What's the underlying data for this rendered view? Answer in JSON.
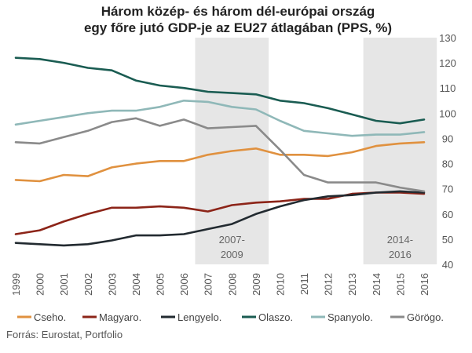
{
  "chart_data": {
    "type": "line",
    "title_lines": [
      "Három közép- és három dél-európai ország",
      "egy főre jutó GDP-je az EU27 átlagában (PPS, %)"
    ],
    "x": [
      "1999",
      "2000",
      "2001",
      "2002",
      "2003",
      "2004",
      "2005",
      "2006",
      "2007",
      "2008",
      "2009",
      "2010",
      "2011",
      "2012",
      "2013",
      "2014",
      "2015",
      "2016"
    ],
    "ylim": [
      40,
      130
    ],
    "yticks": [
      40,
      50,
      60,
      70,
      80,
      90,
      100,
      110,
      120,
      130
    ],
    "y_axis_position": "right",
    "grid": false,
    "shaded_periods": [
      {
        "from": "2007",
        "to": "2009",
        "label_lines": [
          "2007-",
          "2009"
        ]
      },
      {
        "from": "2014",
        "to": "2016",
        "label_lines": [
          "2014-",
          "2016"
        ]
      }
    ],
    "series": [
      {
        "name": "Cseho.",
        "color": "#e0913f",
        "values": [
          73.5,
          73,
          75.5,
          75,
          78.5,
          80,
          81,
          81,
          83.5,
          85,
          86,
          83.5,
          83.5,
          83,
          84.5,
          87,
          88,
          88.5
        ]
      },
      {
        "name": "Magyaro.",
        "color": "#8c2418",
        "values": [
          52,
          53.5,
          57,
          60,
          62.5,
          62.5,
          63,
          62.5,
          61,
          63.5,
          64.5,
          65,
          66,
          66,
          68,
          68.5,
          68.5,
          68
        ]
      },
      {
        "name": "Lengyelo.",
        "color": "#222a30",
        "values": [
          48.5,
          48,
          47.5,
          48,
          49.5,
          51.5,
          51.5,
          52,
          54,
          56,
          60,
          63,
          65.5,
          67,
          67.5,
          68.5,
          69,
          68.5
        ]
      },
      {
        "name": "Olaszo.",
        "color": "#1a5c52",
        "values": [
          122,
          121.5,
          120,
          118,
          117,
          113,
          111,
          110,
          108.5,
          108,
          107.5,
          105,
          104,
          102,
          99.5,
          97,
          96,
          97.5
        ]
      },
      {
        "name": "Spanyolo.",
        "color": "#8fb8b8",
        "values": [
          95.5,
          97,
          98.5,
          100,
          101,
          101,
          102.5,
          105,
          104.5,
          102.5,
          101.5,
          97,
          93,
          92,
          91,
          91.5,
          91.5,
          92.5
        ]
      },
      {
        "name": "Görögo.",
        "color": "#8a8a8a",
        "values": [
          88.5,
          88,
          90.5,
          93,
          96.5,
          98,
          95,
          97.5,
          94,
          94.5,
          95,
          85.5,
          75.5,
          72.5,
          72.5,
          72.5,
          70.5,
          69
        ]
      }
    ]
  },
  "source": "Forrás: Eurostat, Portfolio"
}
